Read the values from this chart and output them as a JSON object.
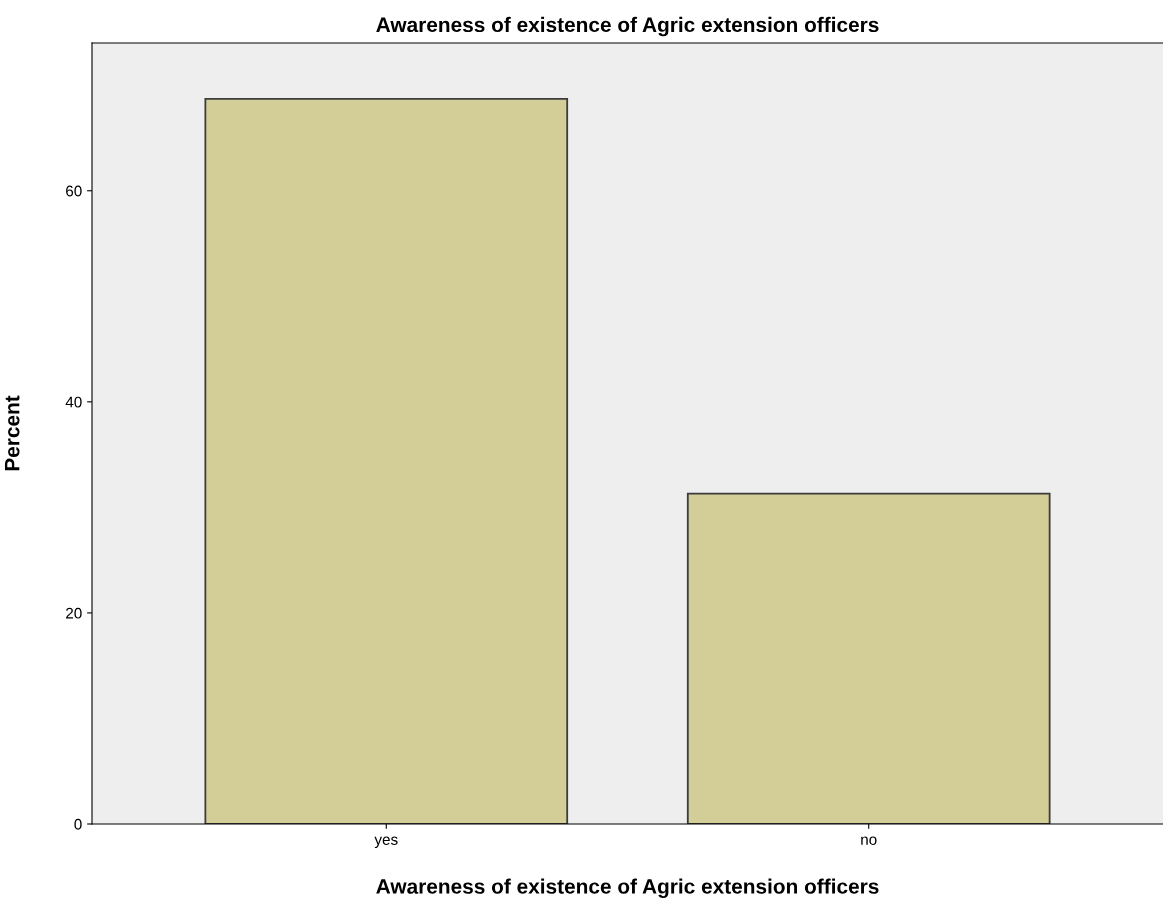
{
  "chart_data": {
    "type": "bar",
    "title": "Awareness of existence of Agric extension officers",
    "xlabel": "Awareness of existence of Agric extension officers",
    "ylabel": "Percent",
    "categories": [
      "yes",
      "no"
    ],
    "values": [
      68.7,
      31.3
    ],
    "color": "#d3ce97",
    "ylim": [
      0,
      74
    ],
    "yticks": [
      0,
      20,
      40,
      60
    ],
    "grid": false,
    "legend": false
  }
}
